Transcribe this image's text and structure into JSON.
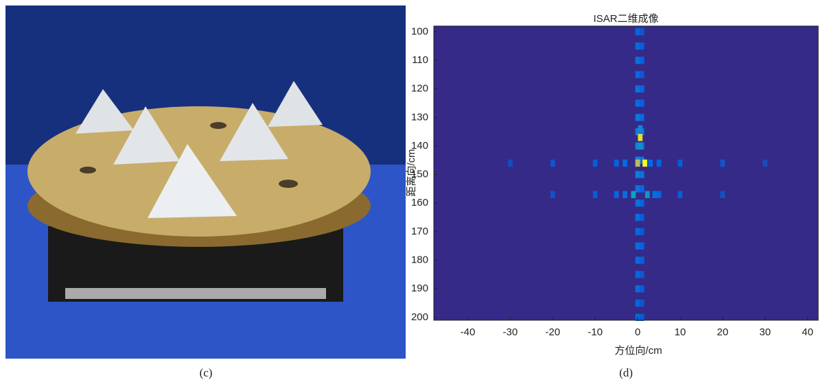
{
  "captions": [
    "(c)",
    "(d)"
  ],
  "chart_data": {
    "type": "heatmap",
    "title": "ISAR二维成像",
    "x_label": "方位向/cm",
    "y_label": "距离向/cm",
    "xlim": [
      -48,
      42.5
    ],
    "ylim": [
      98,
      201
    ],
    "clim": [
      0,
      1
    ],
    "xticks": [
      -40,
      -30,
      -20,
      -10,
      0,
      10,
      20,
      30,
      40
    ],
    "yticks": [
      100,
      110,
      120,
      130,
      140,
      150,
      160,
      170,
      180,
      190,
      200
    ],
    "x": [
      0,
      0,
      0,
      0,
      0,
      0,
      0,
      0,
      0,
      0,
      0,
      0,
      0,
      0,
      0,
      0,
      0,
      0,
      0,
      0,
      0,
      1,
      1,
      1,
      1,
      1,
      1,
      1,
      1,
      1,
      1,
      1,
      1,
      1,
      1,
      1,
      1,
      1,
      1,
      1,
      1,
      1,
      0.6,
      0,
      1.7,
      -1,
      2.3,
      0.6,
      0.6,
      -30,
      -20,
      -10,
      -5,
      -3,
      3,
      5,
      10,
      20,
      30,
      -20,
      -10,
      -5,
      -3,
      4,
      5,
      10,
      20
    ],
    "y": [
      100,
      105,
      110,
      115,
      120,
      125,
      130,
      135,
      140,
      145,
      150,
      155,
      160,
      165,
      170,
      175,
      180,
      185,
      190,
      195,
      200,
      100,
      105,
      110,
      115,
      120,
      125,
      130,
      135,
      140,
      145,
      150,
      155,
      160,
      165,
      170,
      175,
      180,
      185,
      190,
      195,
      200,
      137,
      146,
      146,
      157,
      157,
      140,
      134,
      146,
      146,
      146,
      146,
      146,
      146,
      146,
      146,
      146,
      146,
      157,
      157,
      157,
      157,
      157,
      157,
      157,
      157
    ],
    "values": [
      0.22,
      0.25,
      0.28,
      0.24,
      0.3,
      0.26,
      0.32,
      0.35,
      0.38,
      0.4,
      0.35,
      0.3,
      0.28,
      0.26,
      0.24,
      0.27,
      0.25,
      0.23,
      0.26,
      0.22,
      0.24,
      0.15,
      0.18,
      0.2,
      0.17,
      0.22,
      0.19,
      0.24,
      0.27,
      0.3,
      0.32,
      0.28,
      0.22,
      0.2,
      0.18,
      0.17,
      0.2,
      0.19,
      0.16,
      0.18,
      0.15,
      0.17,
      0.95,
      0.85,
      1.0,
      0.6,
      0.5,
      0.45,
      0.4,
      0.12,
      0.15,
      0.18,
      0.2,
      0.24,
      0.24,
      0.2,
      0.18,
      0.15,
      0.12,
      0.14,
      0.18,
      0.22,
      0.26,
      0.26,
      0.22,
      0.18,
      0.14
    ]
  }
}
